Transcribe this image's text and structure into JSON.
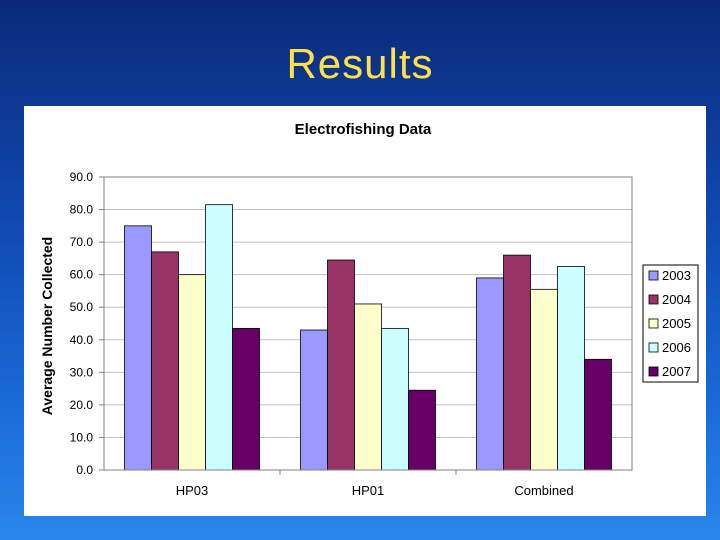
{
  "slide": {
    "title": "Results"
  },
  "chart_data": {
    "type": "bar",
    "title": "Electrofishing Data",
    "xlabel": "",
    "ylabel": "Average Number Collected",
    "categories": [
      "HP03",
      "HP01",
      "Combined"
    ],
    "ylim": [
      0,
      90
    ],
    "yticks": [
      "0.0",
      "10.0",
      "20.0",
      "30.0",
      "40.0",
      "50.0",
      "60.0",
      "70.0",
      "80.0",
      "90.0"
    ],
    "grid": true,
    "legend": "right",
    "series": [
      {
        "name": "2003",
        "color": "#9999ff",
        "values": [
          75.0,
          43.0,
          59.0
        ]
      },
      {
        "name": "2004",
        "color": "#993366",
        "values": [
          67.0,
          64.5,
          66.0
        ]
      },
      {
        "name": "2005",
        "color": "#ffffcc",
        "values": [
          60.0,
          51.0,
          55.5
        ]
      },
      {
        "name": "2006",
        "color": "#ccffff",
        "values": [
          81.5,
          43.5,
          62.5
        ]
      },
      {
        "name": "2007",
        "color": "#660066",
        "values": [
          43.5,
          24.5,
          34.0
        ]
      }
    ]
  }
}
